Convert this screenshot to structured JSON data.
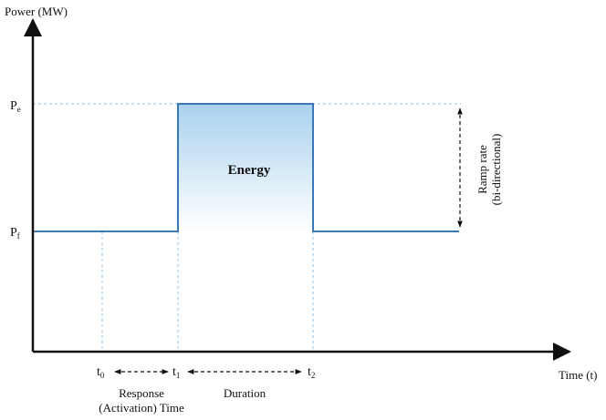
{
  "axes": {
    "y_label": "Power (MW)",
    "x_label": "Time (t)"
  },
  "levels": {
    "pe_main": "P",
    "pe_sub": "e",
    "pf_main": "P",
    "pf_sub": "f"
  },
  "times": {
    "t0_main": "t",
    "t0_sub": "0",
    "t1_main": "t",
    "t1_sub": "1",
    "t2_main": "t",
    "t2_sub": "2"
  },
  "annotations": {
    "energy": "Energy",
    "ramp_line1": "Ramp rate",
    "ramp_line2": "(bi-directional)",
    "response_line1": "Response",
    "response_line2": "(Activation) Time",
    "duration": "Duration"
  },
  "colors": {
    "axis": "#111111",
    "power_line": "#3a78b8",
    "guide_line": "#8fc3e8",
    "energy_top": "#a9d2ee",
    "energy_bottom": "#ffffff"
  }
}
